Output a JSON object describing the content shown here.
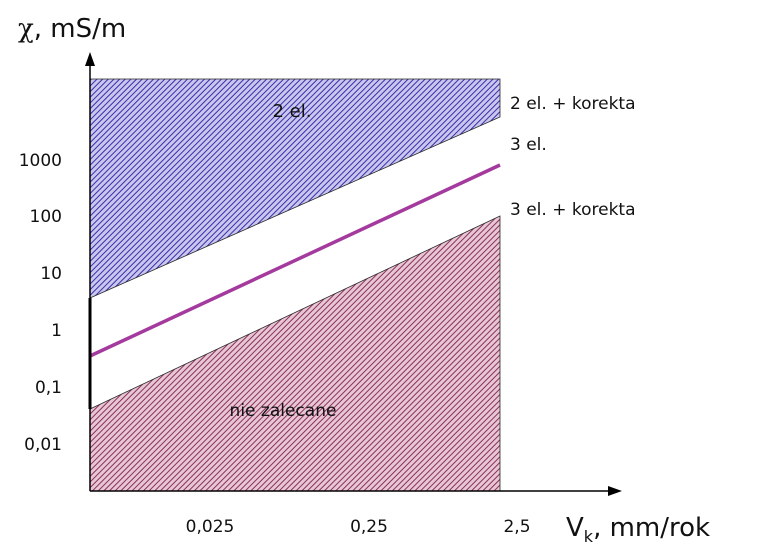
{
  "axes": {
    "y_title_symbol": "χ",
    "y_title_rest": ", mS/m",
    "x_title_main": "V",
    "x_title_sub": "k",
    "x_title_rest": ", mm/rok"
  },
  "y_ticks": [
    "1000",
    "100",
    "10",
    "1",
    "0,1",
    "0,01"
  ],
  "x_ticks": [
    "0,025",
    "0,25",
    "2,5"
  ],
  "regions": {
    "upper_label": "2 el.",
    "lower_label": "nie zalecane"
  },
  "boundary_labels": {
    "upper": "2 el. + korekta",
    "middle": "3 el.",
    "lower": "3 el. + korekta"
  },
  "colors": {
    "upper_hatch": "#3a2ea8",
    "lower_hatch": "#8c2f5c",
    "middle_line": "#a53a9e",
    "axis": "#000000"
  }
}
